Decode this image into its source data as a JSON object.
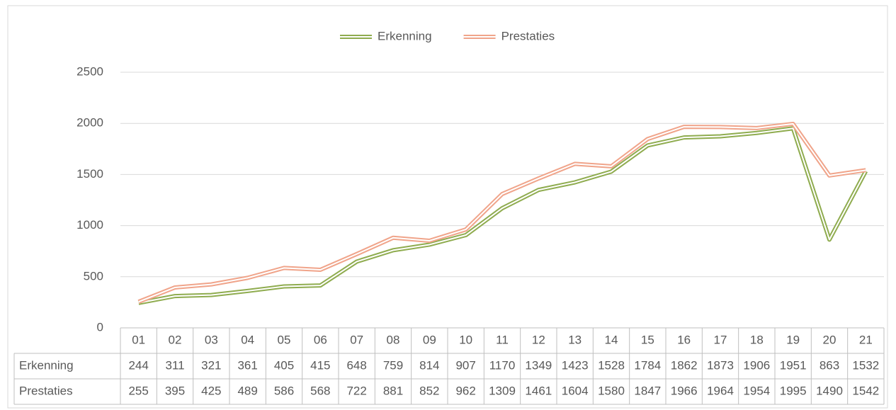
{
  "chart_data": {
    "type": "line",
    "categories": [
      "01",
      "02",
      "03",
      "04",
      "05",
      "06",
      "07",
      "08",
      "09",
      "10",
      "11",
      "12",
      "13",
      "14",
      "15",
      "16",
      "17",
      "18",
      "19",
      "20",
      "21"
    ],
    "series": [
      {
        "name": "Erkenning",
        "color": "#8fac4f",
        "values": [
          244,
          311,
          321,
          361,
          405,
          415,
          648,
          759,
          814,
          907,
          1170,
          1349,
          1423,
          1528,
          1784,
          1862,
          1873,
          1906,
          1951,
          863,
          1532
        ]
      },
      {
        "name": "Prestaties",
        "color": "#f0a48a",
        "values": [
          255,
          395,
          425,
          489,
          586,
          568,
          722,
          881,
          852,
          962,
          1309,
          1461,
          1604,
          1580,
          1847,
          1966,
          1964,
          1954,
          1995,
          1490,
          1542
        ]
      }
    ],
    "ylim": [
      0,
      2500
    ],
    "yticks": [
      0,
      500,
      1000,
      1500,
      2000,
      2500
    ],
    "grid": true,
    "legend": "top",
    "data_table": true
  }
}
